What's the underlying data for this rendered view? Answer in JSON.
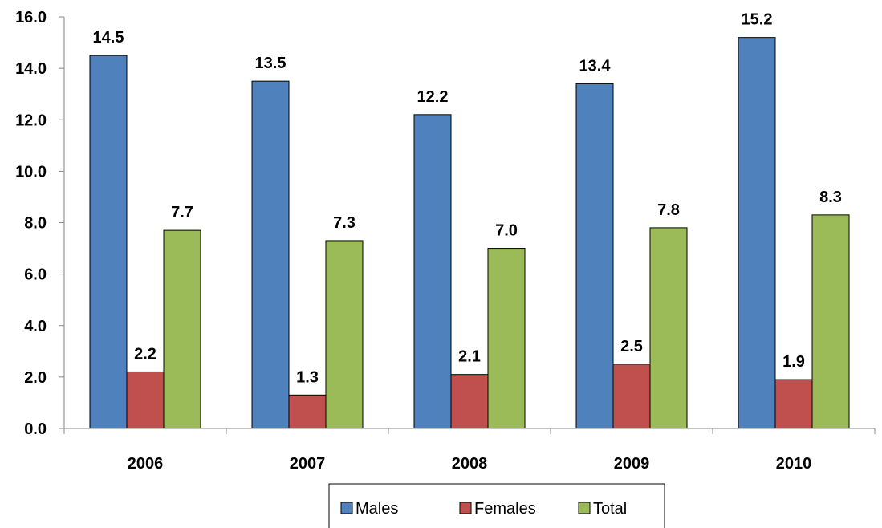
{
  "colors": {
    "Males": "#4F81BD",
    "Females": "#C0504D",
    "Total": "#9BBB59"
  },
  "chart_data": {
    "type": "bar",
    "categories": [
      "2006",
      "2007",
      "2008",
      "2009",
      "2010"
    ],
    "series": [
      {
        "name": "Males",
        "values": [
          14.5,
          13.5,
          12.2,
          13.4,
          15.2
        ]
      },
      {
        "name": "Females",
        "values": [
          2.2,
          1.3,
          2.1,
          2.5,
          1.9
        ]
      },
      {
        "name": "Total",
        "values": [
          7.7,
          7.3,
          7.0,
          7.8,
          8.3
        ]
      }
    ],
    "ylim": [
      0,
      16
    ],
    "yticks": [
      "0.0",
      "2.0",
      "4.0",
      "6.0",
      "8.0",
      "10.0",
      "12.0",
      "14.0",
      "16.0"
    ],
    "grid": false,
    "legend_position": "bottom"
  }
}
